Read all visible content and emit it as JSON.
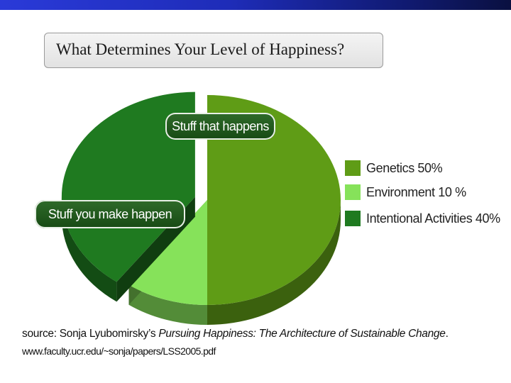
{
  "title": "What Determines Your Level of Happiness?",
  "chart_data": {
    "type": "pie",
    "title": "What Determines Your Level of Happiness?",
    "categories": [
      "Genetics",
      "Environment",
      "Intentional Activities"
    ],
    "values": [
      50,
      10,
      40
    ],
    "colors": [
      "#5f9c16",
      "#86e25a",
      "#1f7a20"
    ],
    "legend_labels": [
      "Genetics 50%",
      "Environment 10 %",
      "Intentional Activities 40%"
    ],
    "legend_position": "right",
    "annotations": [
      "Stuff that happens",
      "Stuff you make happen"
    ],
    "exploded": "Intentional Activities"
  },
  "callouts": {
    "stuff_that_happens": "Stuff that happens",
    "stuff_you_make_happen": "Stuff you make happen"
  },
  "source": {
    "prefix": "source: Sonja Lyubomirsky’s ",
    "book": "Pursuing Happiness: The Architecture of Sustainable Change",
    "suffix": ".",
    "url": "www.faculty.ucr.edu/~sonja/papers/LSS2005.pdf"
  }
}
